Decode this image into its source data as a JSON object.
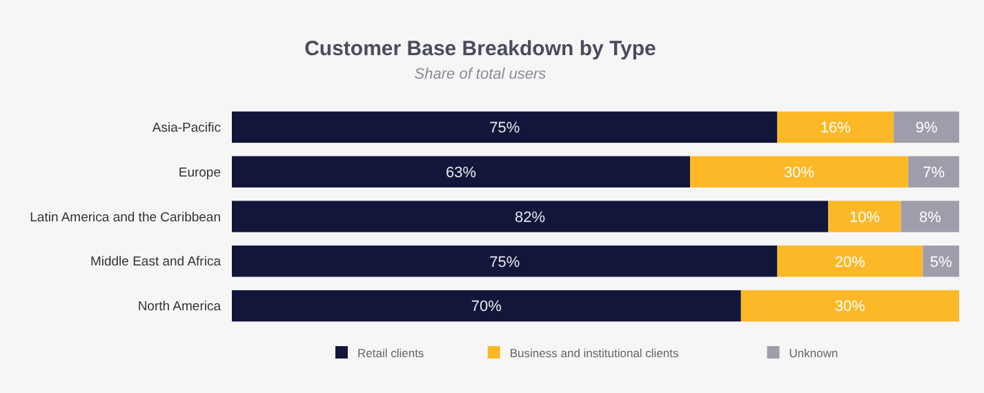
{
  "chart_data": {
    "type": "bar",
    "orientation": "horizontal",
    "stacked": true,
    "title": "Customer Base Breakdown by Type",
    "subtitle": "Share of total users",
    "categories": [
      "Asia-Pacific",
      "Europe",
      "Latin America and the Caribbean",
      "Middle East and Africa",
      "North America"
    ],
    "series": [
      {
        "name": "Retail clients",
        "color": "#12163a",
        "values": [
          75,
          63,
          82,
          75,
          70
        ],
        "value_labels": [
          "75%",
          "63%",
          "82%",
          "75%",
          "70%"
        ]
      },
      {
        "name": "Business and institutional clients",
        "color": "#fdb827",
        "values": [
          16,
          30,
          10,
          20,
          30
        ],
        "value_labels": [
          "16%",
          "30%",
          "10%",
          "20%",
          "30%"
        ]
      },
      {
        "name": "Unknown",
        "color": "#9d9ea9",
        "values": [
          9,
          7,
          8,
          5,
          0
        ],
        "value_labels": [
          "9%",
          "7%",
          "8%",
          "5%",
          null
        ]
      }
    ],
    "legend": "bottom",
    "grid": false
  }
}
